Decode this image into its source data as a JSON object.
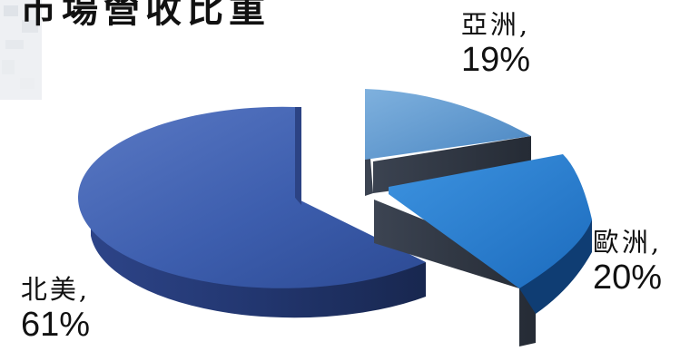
{
  "title": "市場營收比重",
  "chart_data": {
    "type": "pie",
    "title": "市場營收比重",
    "slices": [
      {
        "label": "亞洲",
        "value": 19,
        "percent_text": "19%",
        "color": "#5b96cf",
        "exploded": true
      },
      {
        "label": "歐洲",
        "value": 20,
        "percent_text": "20%",
        "color": "#2a7fcf",
        "exploded": true
      },
      {
        "label": "北美",
        "value": 61,
        "percent_text": "61%",
        "color": "#3a5aa8",
        "exploded": false
      }
    ],
    "three_d": true,
    "legend": "none"
  }
}
